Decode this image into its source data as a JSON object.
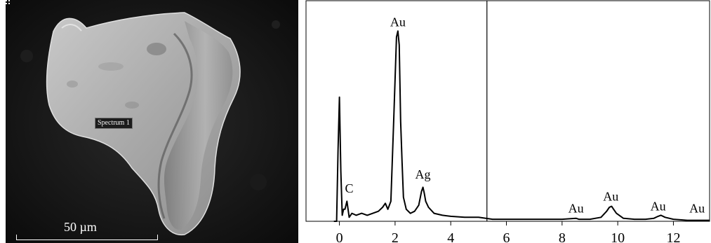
{
  "sem_image": {
    "spectrum_label": "Spectrum 1",
    "scale_bar_label": "50 µm"
  },
  "chart_data": {
    "type": "line",
    "title": "",
    "xlabel": "",
    "ylabel": "",
    "xlim": [
      -1.2,
      13.3
    ],
    "ylim": [
      0,
      1
    ],
    "x_ticks": [
      "0",
      "2",
      "4",
      "6",
      "8",
      "10",
      "12"
    ],
    "x_tick_values": [
      0,
      2,
      4,
      6,
      8,
      10,
      12
    ],
    "cursor_x": 5.3,
    "series": [
      {
        "x": [
          -0.2,
          -0.1,
          -0.05,
          0,
          0.05,
          0.1,
          0.15,
          0.2,
          0.27,
          0.35,
          0.45,
          0.6,
          0.8,
          1.0,
          1.2,
          1.4,
          1.55,
          1.65,
          1.74,
          1.85,
          1.95,
          2.05,
          2.1,
          2.15,
          2.2,
          2.25,
          2.3,
          2.4,
          2.55,
          2.7,
          2.85,
          2.95,
          3.0,
          3.05,
          3.1,
          3.2,
          3.4,
          3.7,
          4.0,
          4.5,
          5.0,
          5.5,
          6.0,
          7.0,
          8.0,
          8.5,
          8.6,
          9.0,
          9.4,
          9.6,
          9.7,
          9.78,
          9.85,
          9.95,
          10.2,
          10.6,
          11.0,
          11.3,
          11.45,
          11.55,
          11.7,
          12.0,
          12.5,
          13.3
        ],
        "values": [
          0.0,
          0.0,
          0.35,
          0.62,
          0.25,
          0.03,
          0.06,
          0.06,
          0.1,
          0.02,
          0.04,
          0.03,
          0.04,
          0.03,
          0.04,
          0.05,
          0.07,
          0.09,
          0.06,
          0.1,
          0.5,
          0.92,
          0.95,
          0.88,
          0.5,
          0.3,
          0.12,
          0.06,
          0.04,
          0.05,
          0.08,
          0.15,
          0.17,
          0.14,
          0.1,
          0.07,
          0.04,
          0.03,
          0.025,
          0.02,
          0.02,
          0.01,
          0.01,
          0.01,
          0.01,
          0.015,
          0.01,
          0.01,
          0.02,
          0.05,
          0.07,
          0.075,
          0.06,
          0.04,
          0.015,
          0.01,
          0.01,
          0.015,
          0.025,
          0.03,
          0.02,
          0.01,
          0.005,
          0.005
        ]
      }
    ],
    "annotations": [
      {
        "text": "Au",
        "x": 2.1,
        "y": 0.96
      },
      {
        "text": "C",
        "x": 0.35,
        "y": 0.13
      },
      {
        "text": "Ag",
        "x": 3.0,
        "y": 0.2
      },
      {
        "text": "Au",
        "x": 8.5,
        "y": 0.03
      },
      {
        "text": "Au",
        "x": 9.75,
        "y": 0.09
      },
      {
        "text": "Au",
        "x": 11.45,
        "y": 0.04
      },
      {
        "text": "Au",
        "x": 12.85,
        "y": 0.03
      }
    ]
  }
}
